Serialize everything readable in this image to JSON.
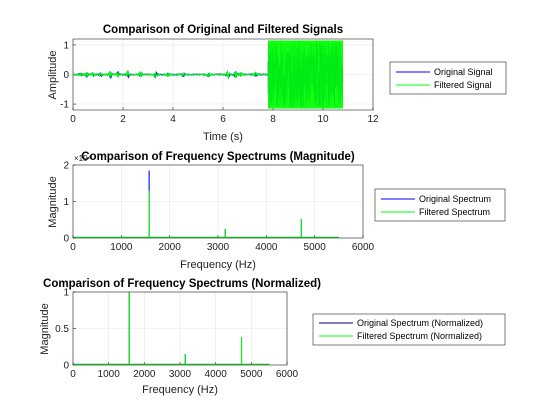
{
  "chart_data": [
    {
      "type": "line",
      "title": "Comparison of Original and Filtered Signals",
      "xlabel": "Time (s)",
      "ylabel": "Amplitude",
      "xlim": [
        0,
        12
      ],
      "ylim": [
        -1.2,
        1.2
      ],
      "xticks": [
        "0",
        "2",
        "4",
        "6",
        "8",
        "10",
        "12"
      ],
      "yticks": [
        "-1",
        "0",
        "1"
      ],
      "grid": true,
      "legend_position": "outside-right",
      "series": [
        {
          "name": "Original Signal",
          "color": "#0000ff"
        },
        {
          "name": "Filtered Signal",
          "color": "#00ff00"
        }
      ],
      "bursts": [
        {
          "center": 0.3,
          "amplitude": 0.05
        },
        {
          "center": 0.55,
          "amplitude": 0.08
        },
        {
          "center": 0.8,
          "amplitude": 0.06
        },
        {
          "center": 1.1,
          "amplitude": 0.07
        },
        {
          "center": 1.5,
          "amplitude": 0.12
        },
        {
          "center": 1.8,
          "amplitude": 0.1
        },
        {
          "center": 2.2,
          "amplitude": 0.14
        },
        {
          "center": 2.7,
          "amplitude": 0.1
        },
        {
          "center": 3.3,
          "amplitude": 0.11
        },
        {
          "center": 3.8,
          "amplitude": 0.06
        },
        {
          "center": 4.4,
          "amplitude": 0.08
        },
        {
          "center": 5.4,
          "amplitude": 0.09
        },
        {
          "center": 6.2,
          "amplitude": 0.15
        },
        {
          "center": 6.5,
          "amplitude": 0.13
        },
        {
          "center": 6.7,
          "amplitude": 0.07
        },
        {
          "center": 7.3,
          "amplitude": 0.1
        }
      ],
      "noise_block": {
        "x_start": 7.8,
        "x_end": 10.8,
        "amplitude": 1.15
      }
    },
    {
      "type": "line",
      "title": "Comparison of Frequency Spectrums (Magnitude)",
      "xlabel": "Frequency (Hz)",
      "ylabel": "Magnitude",
      "xlim": [
        0,
        6000
      ],
      "ylim": [
        0,
        2
      ],
      "xticks": [
        "0",
        "1000",
        "2000",
        "3000",
        "4000",
        "5000",
        "6000"
      ],
      "yticks": [
        "0",
        "1",
        "2"
      ],
      "y_exponent_label": "×10⁴",
      "grid": true,
      "legend_position": "outside-right",
      "series": [
        {
          "name": "Original Spectrum",
          "color": "#0000ff"
        },
        {
          "name": "Filtered Spectrum",
          "color": "#00ff00"
        }
      ],
      "x_max_data": 5500,
      "peaks": [
        {
          "x": 1575,
          "original": 1.85,
          "filtered": 1.3
        },
        {
          "x": 3150,
          "original": 0.25,
          "filtered": 0.25
        },
        {
          "x": 4725,
          "original": 0.52,
          "filtered": 0.52
        }
      ]
    },
    {
      "type": "line",
      "title": "Comparison of Frequency Spectrums (Normalized)",
      "xlabel": "Frequency (Hz)",
      "ylabel": "Magnitude",
      "xlim": [
        0,
        6000
      ],
      "ylim": [
        0,
        1
      ],
      "xticks": [
        "0",
        "1000",
        "2000",
        "3000",
        "4000",
        "5000",
        "6000"
      ],
      "yticks": [
        "0",
        "0.5",
        "1"
      ],
      "grid": true,
      "legend_position": "outside-right",
      "series": [
        {
          "name": "Original Spectrum (Normalized)",
          "color": "#000080"
        },
        {
          "name": "Filtered Spectrum (Normalized)",
          "color": "#00ff00"
        }
      ],
      "x_max_data": 5500,
      "peaks": [
        {
          "x": 1575,
          "original": 1.0,
          "filtered": 1.0
        },
        {
          "x": 3150,
          "original": 0.15,
          "filtered": 0.15
        },
        {
          "x": 4725,
          "original": 0.38,
          "filtered": 0.38
        }
      ]
    }
  ]
}
